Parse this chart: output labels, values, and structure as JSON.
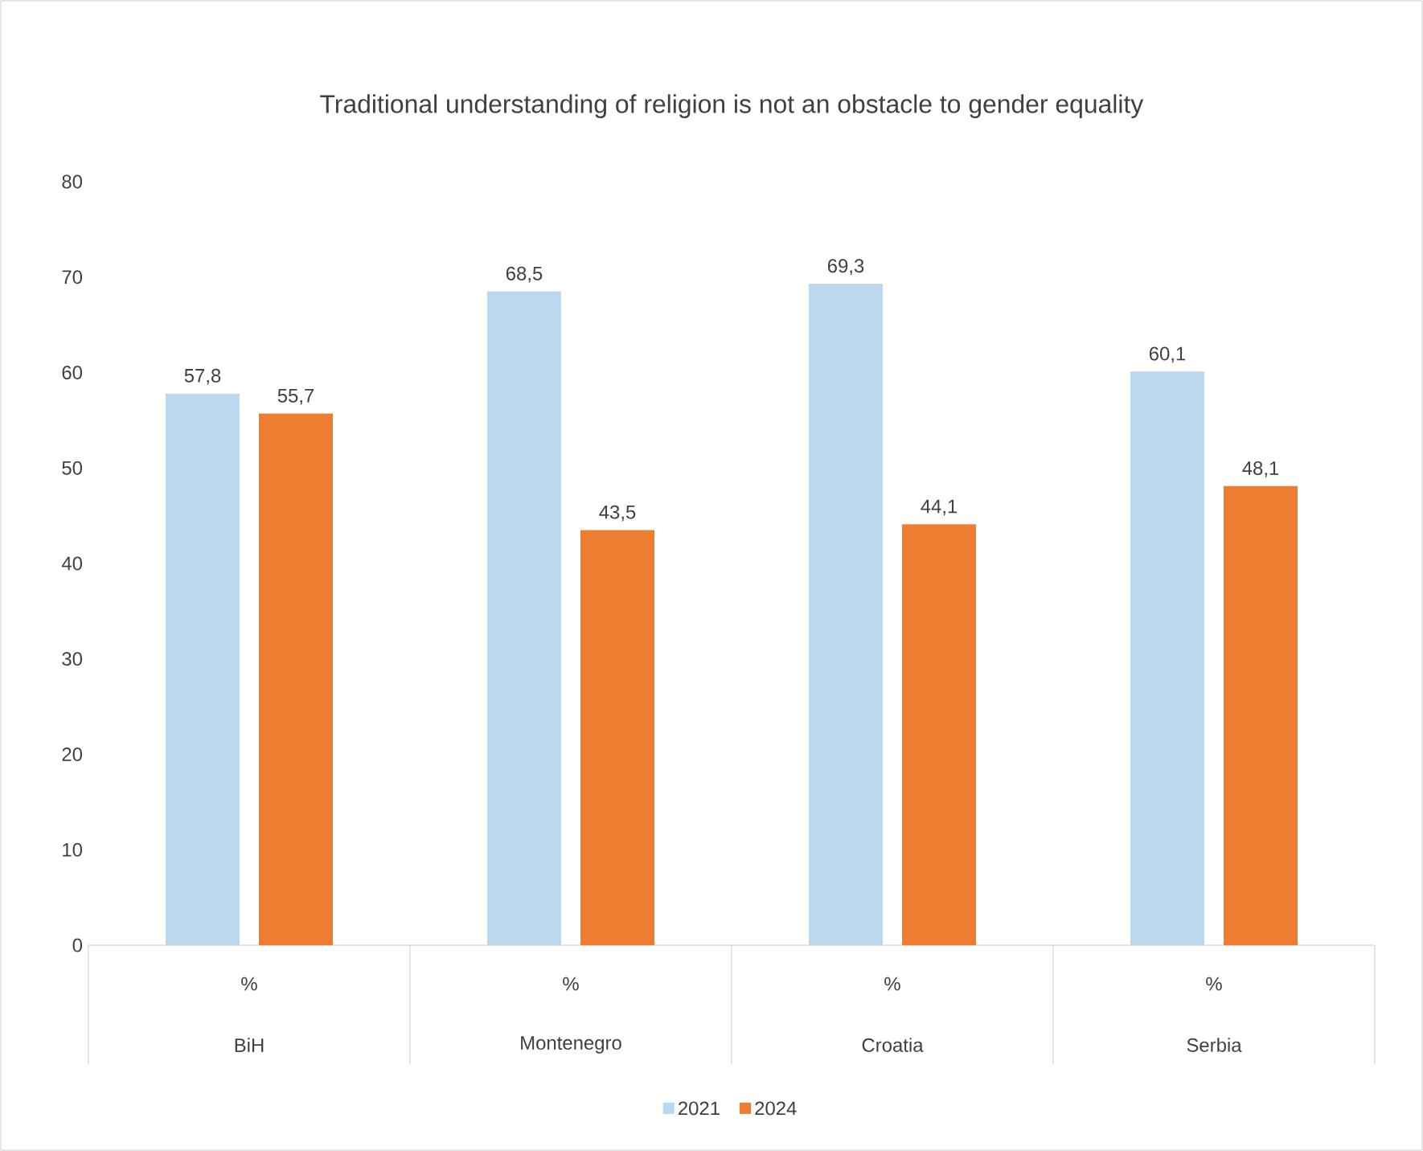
{
  "chart_data": {
    "type": "bar",
    "title": "Traditional understanding of religion is not an obstacle to gender equality",
    "categories": [
      "BiH",
      "Montenegro",
      "Croatia",
      "Serbia"
    ],
    "annotations": [
      "%",
      "%",
      "%",
      "%"
    ],
    "series": [
      {
        "name": "2021",
        "color": "#bdd7ee",
        "values": [
          57.8,
          68.5,
          69.3,
          60.1
        ],
        "value_labels": [
          "57,8",
          "68,5",
          "69,3",
          "60,1"
        ]
      },
      {
        "name": "2024",
        "color": "#ed7d31",
        "values": [
          55.7,
          43.5,
          44.1,
          48.1
        ],
        "value_labels": [
          "55,7",
          "43,5",
          "44,1",
          "48,1"
        ]
      }
    ],
    "ylim": [
      0,
      80
    ],
    "yticks": [
      0,
      10,
      20,
      30,
      40,
      50,
      60,
      70,
      80
    ],
    "legend": "bottom"
  }
}
